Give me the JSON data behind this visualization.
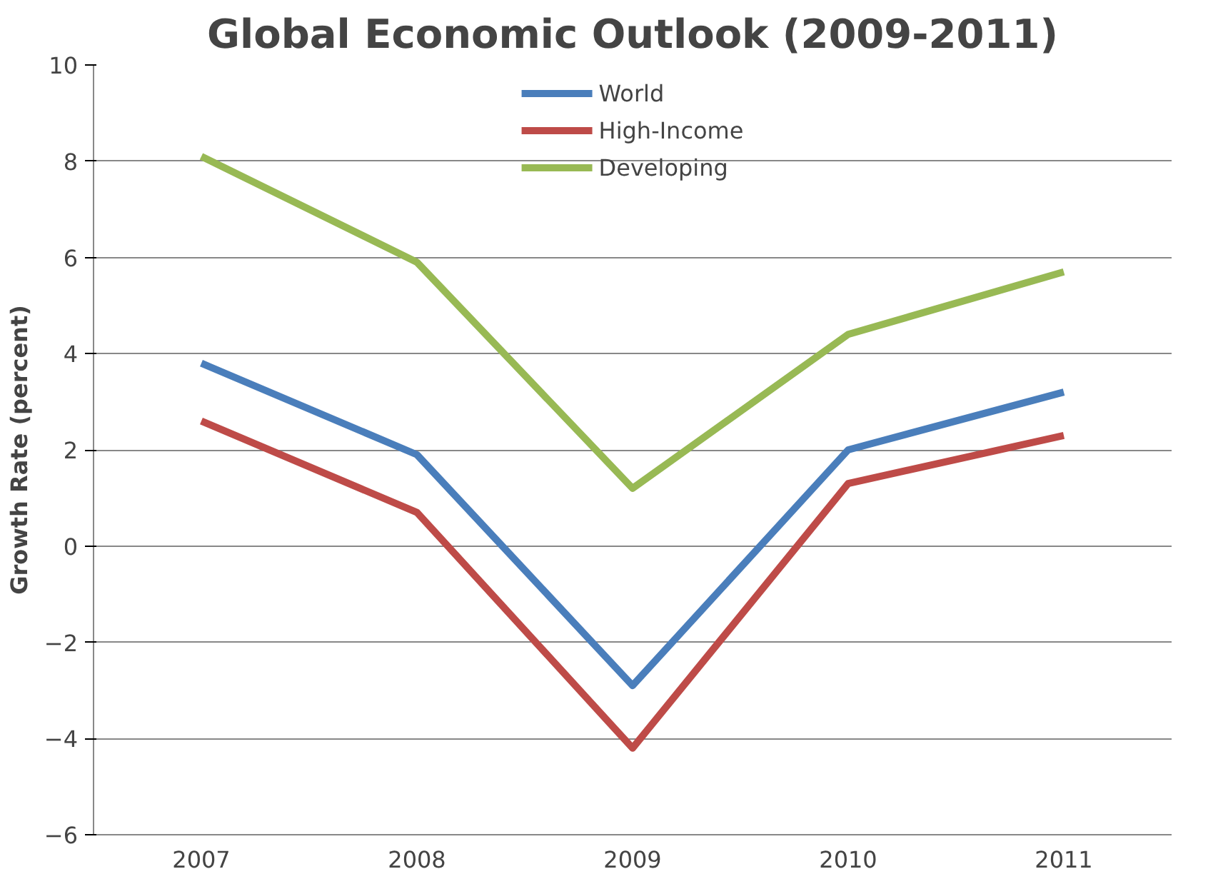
{
  "chart_data": {
    "type": "line",
    "title": "Global Economic Outlook (2009-2011)",
    "ylabel": "Growth Rate (percent)",
    "categories": [
      "2007",
      "2008",
      "2009",
      "2010",
      "2011"
    ],
    "series": [
      {
        "name": "World",
        "color": "#4a7ebb",
        "values": [
          3.8,
          1.9,
          -2.9,
          2.0,
          3.2
        ]
      },
      {
        "name": "High-Income",
        "color": "#be4b48",
        "values": [
          2.6,
          0.7,
          -4.2,
          1.3,
          2.3
        ]
      },
      {
        "name": "Developing",
        "color": "#98b954",
        "values": [
          8.1,
          5.9,
          1.2,
          4.4,
          5.7
        ]
      }
    ],
    "ylim": [
      -6,
      10
    ],
    "yticks": [
      -6,
      -4,
      -2,
      0,
      2,
      4,
      6,
      8,
      10
    ],
    "grid": "y",
    "legend": "top",
    "marker": "none",
    "line_style": "solid"
  }
}
